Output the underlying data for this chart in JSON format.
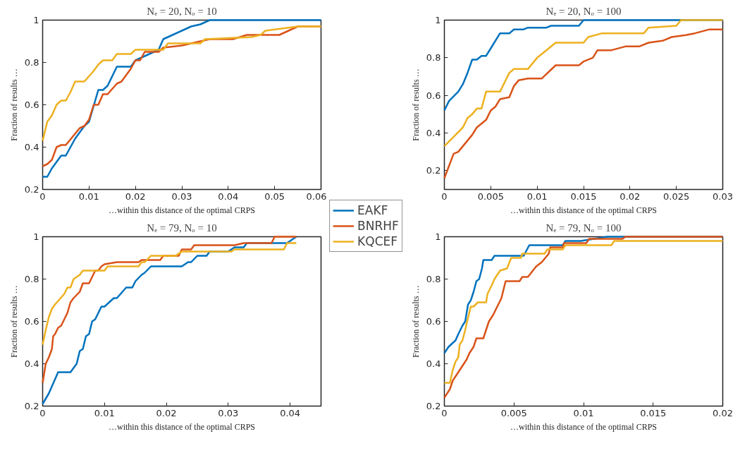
{
  "chart_data": [
    {
      "type": "line",
      "title": "Nₑ = 20, Nₒ = 10",
      "xlabel": "…within this distance of the optimal CRPS",
      "ylabel": "Fraction of results …",
      "xlim": [
        0,
        0.06
      ],
      "ylim": [
        0.2,
        1
      ],
      "xticks": [
        0,
        0.01,
        0.02,
        0.03,
        0.04,
        0.05,
        0.06
      ],
      "yticks": [
        0.2,
        0.4,
        0.6,
        0.8,
        1
      ],
      "grid": false,
      "series": [
        {
          "color": "#0072bd",
          "x": [
            0,
            0.001,
            0.002,
            0.004,
            0.005,
            0.007,
            0.009,
            0.01,
            0.012,
            0.013,
            0.014,
            0.016,
            0.019,
            0.02,
            0.022,
            0.025,
            0.026,
            0.028,
            0.03,
            0.032,
            0.034,
            0.036,
            0.06
          ],
          "values": [
            0.26,
            0.26,
            0.3,
            0.36,
            0.36,
            0.44,
            0.5,
            0.52,
            0.67,
            0.67,
            0.69,
            0.78,
            0.78,
            0.81,
            0.83,
            0.86,
            0.91,
            0.93,
            0.95,
            0.97,
            0.98,
            1.0,
            1.0
          ]
        },
        {
          "color": "#d95319",
          "x": [
            0,
            0.001,
            0.002,
            0.003,
            0.004,
            0.005,
            0.008,
            0.009,
            0.01,
            0.011,
            0.012,
            0.013,
            0.014,
            0.016,
            0.017,
            0.019,
            0.02,
            0.021,
            0.022,
            0.025,
            0.026,
            0.03,
            0.034,
            0.036,
            0.041,
            0.044,
            0.051,
            0.053,
            0.055,
            0.06
          ],
          "values": [
            0.31,
            0.32,
            0.34,
            0.4,
            0.41,
            0.41,
            0.49,
            0.5,
            0.53,
            0.6,
            0.6,
            0.65,
            0.65,
            0.7,
            0.71,
            0.77,
            0.81,
            0.81,
            0.85,
            0.85,
            0.87,
            0.88,
            0.9,
            0.91,
            0.91,
            0.93,
            0.93,
            0.95,
            0.97,
            0.97
          ]
        },
        {
          "color": "#edb120",
          "x": [
            0,
            0.001,
            0.002,
            0.003,
            0.004,
            0.005,
            0.006,
            0.007,
            0.009,
            0.011,
            0.012,
            0.013,
            0.015,
            0.016,
            0.019,
            0.02,
            0.026,
            0.027,
            0.034,
            0.035,
            0.045,
            0.047,
            0.048,
            0.055,
            0.06
          ],
          "values": [
            0.43,
            0.52,
            0.55,
            0.6,
            0.62,
            0.62,
            0.66,
            0.71,
            0.71,
            0.76,
            0.79,
            0.81,
            0.81,
            0.84,
            0.84,
            0.86,
            0.86,
            0.89,
            0.89,
            0.91,
            0.92,
            0.93,
            0.95,
            0.97,
            0.97
          ]
        }
      ]
    },
    {
      "type": "line",
      "title": "Nₑ = 20, Nₒ = 100",
      "xlabel": "…within this distance of the optimal CRPS",
      "ylabel": "Fraction of results …",
      "xlim": [
        0,
        0.03
      ],
      "ylim": [
        0.1,
        1
      ],
      "xticks": [
        0,
        0.005,
        0.01,
        0.015,
        0.02,
        0.025,
        0.03
      ],
      "yticks": [
        0.2,
        0.4,
        0.6,
        0.8,
        1
      ],
      "grid": false,
      "series": [
        {
          "color": "#0072bd",
          "x": [
            0,
            0.0005,
            0.0015,
            0.002,
            0.0025,
            0.003,
            0.0035,
            0.004,
            0.0045,
            0.005,
            0.006,
            0.007,
            0.0075,
            0.0085,
            0.009,
            0.011,
            0.0115,
            0.0145,
            0.015,
            0.03
          ],
          "values": [
            0.52,
            0.57,
            0.62,
            0.66,
            0.72,
            0.79,
            0.79,
            0.81,
            0.81,
            0.85,
            0.93,
            0.93,
            0.95,
            0.95,
            0.96,
            0.96,
            0.97,
            0.97,
            1.0,
            1.0
          ]
        },
        {
          "color": "#d95319",
          "x": [
            0,
            0.001,
            0.0015,
            0.002,
            0.0025,
            0.003,
            0.0035,
            0.004,
            0.0045,
            0.005,
            0.0055,
            0.006,
            0.007,
            0.0075,
            0.008,
            0.009,
            0.0105,
            0.012,
            0.0145,
            0.015,
            0.016,
            0.0165,
            0.018,
            0.0195,
            0.021,
            0.022,
            0.0235,
            0.0245,
            0.026,
            0.027,
            0.0285,
            0.03
          ],
          "values": [
            0.16,
            0.29,
            0.3,
            0.33,
            0.36,
            0.39,
            0.43,
            0.45,
            0.47,
            0.52,
            0.54,
            0.58,
            0.59,
            0.65,
            0.68,
            0.69,
            0.69,
            0.76,
            0.76,
            0.78,
            0.8,
            0.84,
            0.84,
            0.86,
            0.86,
            0.88,
            0.89,
            0.91,
            0.92,
            0.93,
            0.95,
            0.95
          ]
        },
        {
          "color": "#edb120",
          "x": [
            0,
            0.001,
            0.002,
            0.0025,
            0.003,
            0.0035,
            0.004,
            0.0045,
            0.006,
            0.0065,
            0.007,
            0.0075,
            0.009,
            0.0095,
            0.01,
            0.0105,
            0.011,
            0.0115,
            0.012,
            0.015,
            0.0155,
            0.017,
            0.0215,
            0.022,
            0.025,
            0.0255,
            0.03
          ],
          "values": [
            0.33,
            0.38,
            0.43,
            0.48,
            0.5,
            0.53,
            0.53,
            0.62,
            0.62,
            0.67,
            0.72,
            0.74,
            0.74,
            0.77,
            0.8,
            0.82,
            0.84,
            0.86,
            0.88,
            0.88,
            0.91,
            0.93,
            0.93,
            0.96,
            0.97,
            1.0,
            1.0
          ]
        }
      ]
    },
    {
      "type": "line",
      "title": "Nₑ = 79, Nₒ = 10",
      "xlabel": "…within this distance of the optimal CRPS",
      "ylabel": "Fraction of results …",
      "xlim": [
        0,
        0.045
      ],
      "ylim": [
        0.2,
        1
      ],
      "xticks": [
        0,
        0.01,
        0.02,
        0.03,
        0.04
      ],
      "yticks": [
        0.2,
        0.4,
        0.6,
        0.8,
        1
      ],
      "grid": false,
      "legend": "right",
      "series": [
        {
          "name": "EAKF",
          "color": "#0072bd",
          "x": [
            0,
            0.001,
            0.0025,
            0.0045,
            0.0055,
            0.006,
            0.0065,
            0.007,
            0.0075,
            0.008,
            0.0085,
            0.0095,
            0.01,
            0.0115,
            0.012,
            0.0135,
            0.0145,
            0.015,
            0.016,
            0.0165,
            0.0175,
            0.0225,
            0.0235,
            0.024,
            0.025,
            0.0265,
            0.027,
            0.03,
            0.031,
            0.0325,
            0.033,
            0.0395,
            0.04,
            0.041
          ],
          "values": [
            0.21,
            0.26,
            0.36,
            0.36,
            0.4,
            0.46,
            0.47,
            0.53,
            0.54,
            0.6,
            0.61,
            0.67,
            0.67,
            0.71,
            0.71,
            0.76,
            0.76,
            0.79,
            0.82,
            0.83,
            0.86,
            0.86,
            0.88,
            0.88,
            0.91,
            0.91,
            0.93,
            0.93,
            0.95,
            0.95,
            0.97,
            0.97,
            0.98,
            1.0
          ]
        },
        {
          "name": "BNRHF",
          "color": "#d95319",
          "x": [
            0,
            0.0005,
            0.001,
            0.0015,
            0.0017,
            0.002,
            0.0025,
            0.003,
            0.004,
            0.0045,
            0.005,
            0.006,
            0.0065,
            0.0075,
            0.008,
            0.0085,
            0.009,
            0.0095,
            0.01,
            0.012,
            0.0155,
            0.016,
            0.019,
            0.0195,
            0.022,
            0.0225,
            0.024,
            0.0245,
            0.031,
            0.0325,
            0.037,
            0.0375,
            0.041
          ],
          "values": [
            0.31,
            0.4,
            0.43,
            0.47,
            0.53,
            0.54,
            0.57,
            0.58,
            0.64,
            0.69,
            0.71,
            0.74,
            0.78,
            0.78,
            0.81,
            0.84,
            0.84,
            0.86,
            0.87,
            0.88,
            0.88,
            0.89,
            0.89,
            0.91,
            0.91,
            0.94,
            0.94,
            0.96,
            0.96,
            0.97,
            0.97,
            1.0,
            1.0
          ]
        },
        {
          "name": "KQCEF",
          "color": "#edb120",
          "x": [
            0,
            0.0005,
            0.001,
            0.0015,
            0.002,
            0.0035,
            0.004,
            0.0045,
            0.005,
            0.006,
            0.0065,
            0.01,
            0.0105,
            0.0155,
            0.016,
            0.0165,
            0.0175,
            0.0215,
            0.0225,
            0.0305,
            0.031,
            0.039,
            0.0395,
            0.041
          ],
          "values": [
            0.49,
            0.56,
            0.62,
            0.66,
            0.68,
            0.73,
            0.76,
            0.76,
            0.8,
            0.82,
            0.84,
            0.84,
            0.86,
            0.86,
            0.88,
            0.88,
            0.91,
            0.91,
            0.93,
            0.93,
            0.94,
            0.94,
            0.97,
            0.97
          ]
        }
      ]
    },
    {
      "type": "line",
      "title": "Nₑ = 79, Nₒ = 100",
      "xlabel": "…within this distance of the optimal CRPS",
      "ylabel": "Fraction of results …",
      "xlim": [
        0,
        0.02
      ],
      "ylim": [
        0.2,
        1
      ],
      "xticks": [
        0,
        0.005,
        0.01,
        0.015,
        0.02
      ],
      "yticks": [
        0.2,
        0.4,
        0.6,
        0.8,
        1
      ],
      "grid": false,
      "series": [
        {
          "color": "#0072bd",
          "x": [
            0,
            0.0003,
            0.0008,
            0.001,
            0.0013,
            0.0015,
            0.0017,
            0.0019,
            0.0021,
            0.0023,
            0.0025,
            0.0027,
            0.0028,
            0.0034,
            0.0036,
            0.0057,
            0.0061,
            0.0085,
            0.0087,
            0.0098,
            0.0117,
            0.02
          ],
          "values": [
            0.45,
            0.48,
            0.51,
            0.54,
            0.58,
            0.6,
            0.68,
            0.7,
            0.74,
            0.79,
            0.8,
            0.85,
            0.89,
            0.89,
            0.91,
            0.91,
            0.96,
            0.96,
            0.98,
            0.98,
            1.0,
            1.0
          ]
        },
        {
          "color": "#d95319",
          "x": [
            0,
            0.0004,
            0.0006,
            0.001,
            0.0014,
            0.0016,
            0.0018,
            0.0021,
            0.0023,
            0.0028,
            0.0032,
            0.0035,
            0.0038,
            0.0041,
            0.0044,
            0.0054,
            0.0056,
            0.006,
            0.0066,
            0.007,
            0.0075,
            0.0076,
            0.0085,
            0.0086,
            0.0102,
            0.0104,
            0.0128,
            0.013,
            0.02
          ],
          "values": [
            0.24,
            0.28,
            0.32,
            0.36,
            0.4,
            0.42,
            0.45,
            0.48,
            0.52,
            0.52,
            0.6,
            0.63,
            0.67,
            0.71,
            0.79,
            0.79,
            0.81,
            0.81,
            0.86,
            0.88,
            0.92,
            0.95,
            0.95,
            0.97,
            0.97,
            0.99,
            0.99,
            1.0,
            1.0
          ]
        },
        {
          "color": "#edb120",
          "x": [
            0,
            0.0004,
            0.0006,
            0.0008,
            0.001,
            0.0011,
            0.0013,
            0.0015,
            0.0016,
            0.0019,
            0.0021,
            0.0024,
            0.003,
            0.0031,
            0.0034,
            0.0036,
            0.004,
            0.0045,
            0.0048,
            0.0055,
            0.0056,
            0.0072,
            0.0074,
            0.0085,
            0.0087,
            0.012,
            0.0122,
            0.02
          ],
          "values": [
            0.31,
            0.31,
            0.37,
            0.41,
            0.43,
            0.49,
            0.51,
            0.56,
            0.59,
            0.67,
            0.67,
            0.69,
            0.69,
            0.73,
            0.77,
            0.8,
            0.84,
            0.85,
            0.9,
            0.9,
            0.92,
            0.92,
            0.94,
            0.94,
            0.96,
            0.96,
            0.98,
            0.98
          ]
        }
      ]
    }
  ]
}
